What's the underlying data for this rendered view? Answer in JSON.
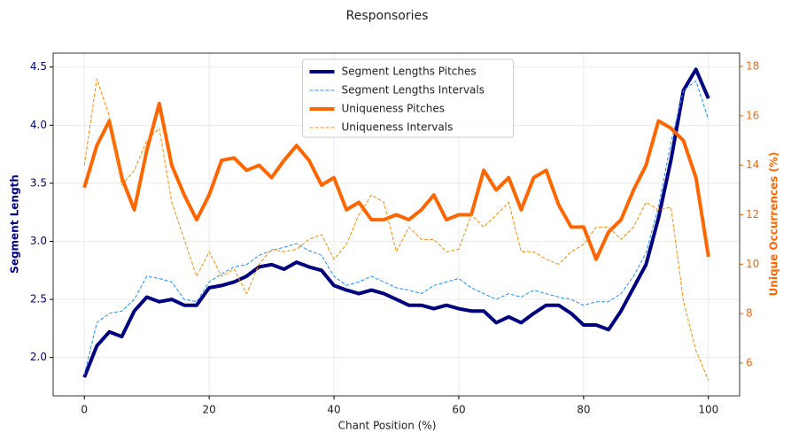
{
  "chart_data": {
    "type": "line",
    "title": "Responsories",
    "x_label": "Chant Position (%)",
    "y_label": "Segment Length",
    "y2_label": "Unique Occurrences (%)",
    "y_label_color": "#000080",
    "y2_label_color": "#ff6600",
    "xlim": [
      -5,
      105
    ],
    "ylim": [
      1.67,
      4.62
    ],
    "y2lim": [
      4.67,
      18.54
    ],
    "xticks": [
      0,
      20,
      40,
      60,
      80,
      100
    ],
    "yticks": [
      {
        "value": 2,
        "label": "2.0"
      },
      2.5,
      {
        "value": 3,
        "label": "3.0"
      },
      3.5,
      {
        "value": 4,
        "label": "4.0"
      },
      4.5
    ],
    "y2ticks": [
      6,
      8,
      10,
      12,
      14,
      16,
      18
    ],
    "grid": true,
    "legend": "upper center",
    "x": [
      0,
      2,
      4,
      6,
      8,
      10,
      12,
      14,
      16,
      18,
      20,
      22,
      24,
      26,
      28,
      30,
      32,
      34,
      36,
      38,
      40,
      42,
      44,
      46,
      48,
      50,
      52,
      54,
      56,
      58,
      60,
      62,
      64,
      66,
      68,
      70,
      72,
      74,
      76,
      78,
      80,
      82,
      84,
      86,
      88,
      90,
      92,
      94,
      96,
      98,
      100
    ],
    "series": [
      {
        "name": "Segment Lengths Pitches",
        "color": "#000080",
        "width": 4,
        "dash": "none",
        "axis": "y",
        "values": [
          1.83,
          2.1,
          2.22,
          2.18,
          2.4,
          2.52,
          2.48,
          2.5,
          2.45,
          2.45,
          2.6,
          2.62,
          2.65,
          2.7,
          2.78,
          2.8,
          2.76,
          2.82,
          2.78,
          2.75,
          2.62,
          2.58,
          2.55,
          2.58,
          2.55,
          2.5,
          2.45,
          2.45,
          2.42,
          2.45,
          2.42,
          2.4,
          2.4,
          2.3,
          2.35,
          2.3,
          2.38,
          2.45,
          2.45,
          2.38,
          2.28,
          2.28,
          2.24,
          2.4,
          2.6,
          2.8,
          3.2,
          3.7,
          4.3,
          4.48,
          4.23
        ]
      },
      {
        "name": "Segment Lengths Intervals",
        "color": "#1e90ff",
        "width": 1,
        "dash": "4 2",
        "axis": "y",
        "values": [
          1.85,
          2.3,
          2.38,
          2.4,
          2.5,
          2.7,
          2.68,
          2.65,
          2.5,
          2.48,
          2.65,
          2.72,
          2.78,
          2.8,
          2.88,
          2.92,
          2.95,
          2.98,
          2.92,
          2.88,
          2.7,
          2.62,
          2.65,
          2.7,
          2.65,
          2.6,
          2.58,
          2.55,
          2.62,
          2.65,
          2.68,
          2.6,
          2.55,
          2.5,
          2.55,
          2.52,
          2.58,
          2.55,
          2.52,
          2.5,
          2.45,
          2.48,
          2.48,
          2.55,
          2.7,
          2.9,
          3.3,
          3.85,
          4.3,
          4.38,
          4.05
        ]
      },
      {
        "name": "Uniqueness Pitches",
        "color": "#ff6600",
        "width": 4,
        "dash": "none",
        "axis": "y2",
        "values": [
          13.1,
          14.8,
          15.8,
          13.5,
          12.2,
          14.6,
          16.5,
          14,
          12.8,
          11.8,
          12.8,
          14.2,
          14.3,
          13.8,
          14,
          13.5,
          14.2,
          14.8,
          14.2,
          13.2,
          13.5,
          12.2,
          12.5,
          11.8,
          11.8,
          12,
          11.8,
          12.2,
          12.8,
          11.8,
          12,
          12,
          13.8,
          13,
          13.5,
          12.2,
          13.5,
          13.8,
          12.4,
          11.5,
          11.5,
          10.2,
          11.3,
          11.8,
          13,
          14,
          15.8,
          15.5,
          15,
          13.5,
          10.3
        ]
      },
      {
        "name": "Uniqueness Intervals",
        "color": "#ff8c00",
        "width": 1,
        "dash": "4 2",
        "axis": "y2",
        "values": [
          14,
          17.5,
          16,
          13.2,
          13.8,
          15,
          15.5,
          12.5,
          11,
          9.5,
          10.5,
          9.5,
          9.8,
          8.8,
          10,
          10.6,
          10.5,
          10.6,
          11,
          11.2,
          10.2,
          10.8,
          12,
          12.8,
          12.5,
          10.5,
          11.5,
          11,
          11,
          10.5,
          10.6,
          12,
          11.5,
          12,
          12.5,
          10.5,
          10.5,
          10.2,
          10,
          10.5,
          10.8,
          11.5,
          11.5,
          11,
          11.5,
          12.5,
          12.2,
          12.3,
          8.5,
          6.5,
          5.3
        ]
      }
    ]
  }
}
